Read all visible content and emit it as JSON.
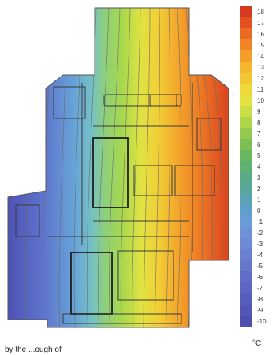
{
  "figure": {
    "caption_fragment": "by the ...ough of",
    "scale": {
      "unit": "°C",
      "min": -10,
      "max": 18,
      "ticks": [
        "18",
        "17",
        "16",
        "15",
        "14",
        "13",
        "12",
        "11",
        "10",
        "9",
        "8",
        "7",
        "6",
        "5",
        "4",
        "3",
        "2",
        "1",
        "0",
        "-1",
        "-2",
        "-3",
        "-4",
        "-5",
        "-6",
        "-7",
        "-8",
        "-9",
        "-10"
      ],
      "colors": [
        "#d63a1f",
        "#e2511f",
        "#ea6a22",
        "#f08426",
        "#f39d2a",
        "#f5b52e",
        "#f3c733",
        "#eed83a",
        "#e3e240",
        "#c9dd44",
        "#aed449",
        "#93c94e",
        "#7bbf55",
        "#69b760",
        "#5fb171",
        "#58ab86",
        "#58a79d",
        "#5ba3b4",
        "#5f9fca",
        "#6a9cd6",
        "#6d93d6",
        "#6d8ad4",
        "#6a80d0",
        "#6677cc",
        "#616ec7",
        "#5d66c2",
        "#585ebd",
        "#5356b6",
        "#4e4fae"
      ]
    }
  }
}
